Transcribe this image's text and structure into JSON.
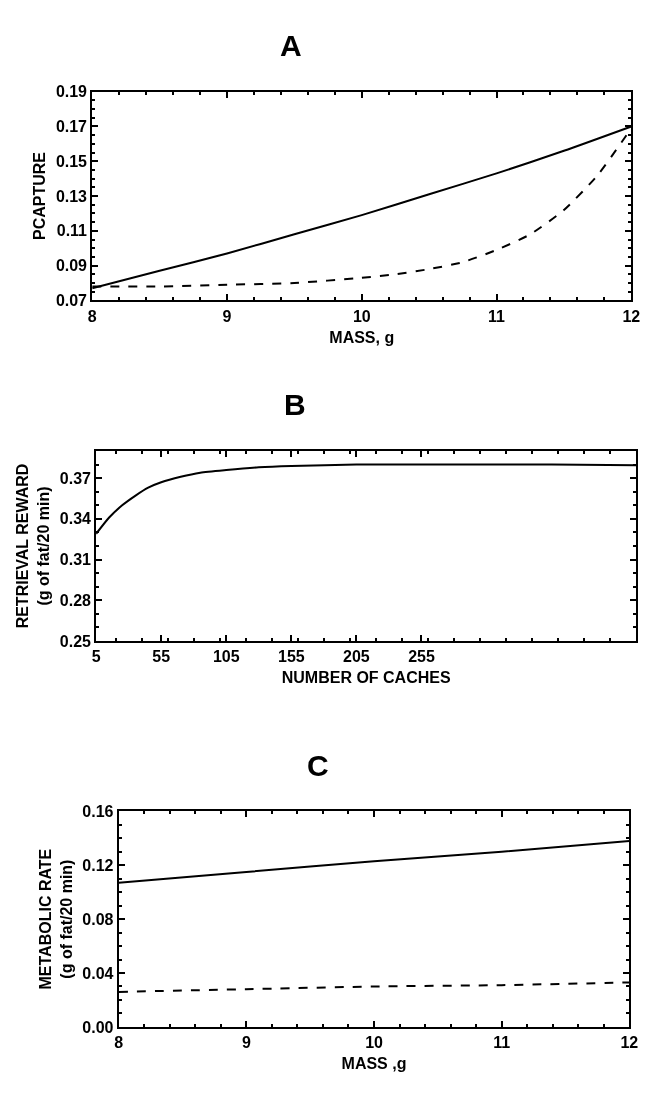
{
  "chart_data": [
    {
      "type": "line",
      "title": "A",
      "xlabel": "MASS, g",
      "ylabel": "PCAPTURE",
      "xlim": [
        8,
        12
      ],
      "xticks": [
        8,
        9,
        10,
        11,
        12
      ],
      "ylim": [
        0.07,
        0.19
      ],
      "yticks": [
        0.07,
        0.09,
        0.11,
        0.13,
        0.15,
        0.17,
        0.19
      ],
      "series": [
        {
          "color": "#000000",
          "line_style": "solid",
          "x": [
            8,
            8.5,
            9,
            9.5,
            10,
            10.5,
            11,
            11.5,
            12
          ],
          "values": [
            0.077,
            0.087,
            0.097,
            0.108,
            0.119,
            0.131,
            0.143,
            0.156,
            0.17
          ]
        },
        {
          "color": "#000000",
          "line_style": "dashed",
          "x": [
            8,
            8.5,
            9,
            9.5,
            10,
            10.25,
            10.5,
            10.75,
            11,
            11.25,
            11.5,
            11.75,
            12
          ],
          "values": [
            0.078,
            0.078,
            0.079,
            0.08,
            0.083,
            0.085,
            0.088,
            0.092,
            0.099,
            0.108,
            0.122,
            0.142,
            0.169
          ]
        }
      ]
    },
    {
      "type": "line",
      "title": "B",
      "xlabel": "NUMBER OF CACHES",
      "ylabel": "RETRIEVAL REWARD\n(g of fat/20 min)",
      "xlim": [
        5,
        420
      ],
      "xticks": [
        5,
        55,
        105,
        155,
        205,
        255
      ],
      "ylim": [
        0.25,
        0.39
      ],
      "yticks": [
        0.25,
        0.28,
        0.31,
        0.34,
        0.37
      ],
      "series": [
        {
          "color": "#000000",
          "line_style": "solid",
          "x": [
            5,
            15,
            25,
            35,
            45,
            55,
            70,
            85,
            105,
            130,
            155,
            205,
            255,
            305,
            355,
            420
          ],
          "values": [
            0.329,
            0.341,
            0.35,
            0.357,
            0.363,
            0.367,
            0.371,
            0.374,
            0.376,
            0.378,
            0.379,
            0.38,
            0.38,
            0.38,
            0.38,
            0.3795
          ]
        }
      ]
    },
    {
      "type": "line",
      "title": "C",
      "xlabel": "MASS ,g",
      "ylabel": "METABOLIC RATE\n(g of fat/20 min)",
      "xlim": [
        8,
        12
      ],
      "xticks": [
        8,
        9,
        10,
        11,
        12
      ],
      "ylim": [
        0.0,
        0.16
      ],
      "yticks": [
        {
          "value": 0,
          "label": "0.00"
        },
        {
          "value": 0.04,
          "label": "0.04"
        },
        {
          "value": 0.08,
          "label": "0.08"
        },
        {
          "value": 0.12,
          "label": "0.12"
        },
        {
          "value": 0.16,
          "label": "0.16"
        }
      ],
      "series": [
        {
          "color": "#000000",
          "line_style": "solid",
          "x": [
            8,
            9,
            10,
            11,
            12
          ],
          "values": [
            0.107,
            0.115,
            0.123,
            0.13,
            0.138
          ]
        },
        {
          "color": "#000000",
          "line_style": "dashed",
          "x": [
            8,
            9,
            10,
            11,
            12
          ],
          "values": [
            0.026,
            0.028,
            0.03,
            0.031,
            0.033
          ]
        }
      ]
    }
  ]
}
